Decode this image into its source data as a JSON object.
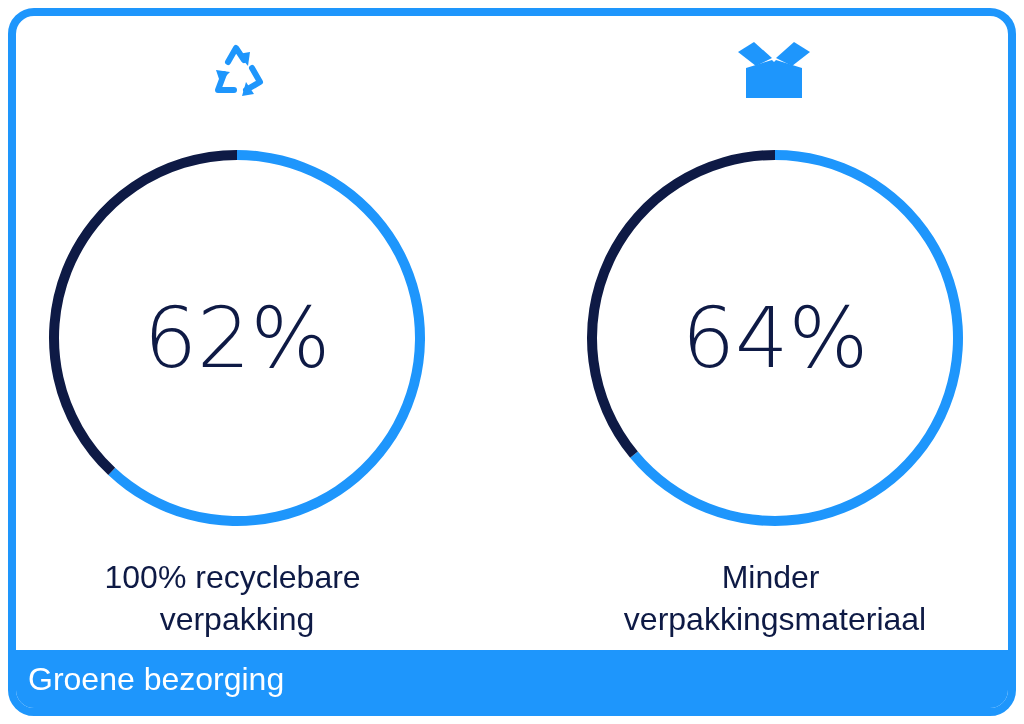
{
  "chart_data": [
    {
      "type": "donut",
      "title": "100% recyclebare verpakking",
      "categories": [
        null,
        null
      ],
      "values": [
        62,
        38
      ],
      "colors": [
        "#1e96fc",
        "#0e1a45"
      ],
      "annotations": [
        "62%",
        "Groene bezorging"
      ]
    },
    {
      "type": "donut",
      "title": "Minder verpakkingsmateriaal",
      "categories": [
        null,
        null
      ],
      "values": [
        64,
        36
      ],
      "colors": [
        "#1e96fc",
        "#0e1a45"
      ],
      "annotations": [
        "64%"
      ]
    }
  ]
}
